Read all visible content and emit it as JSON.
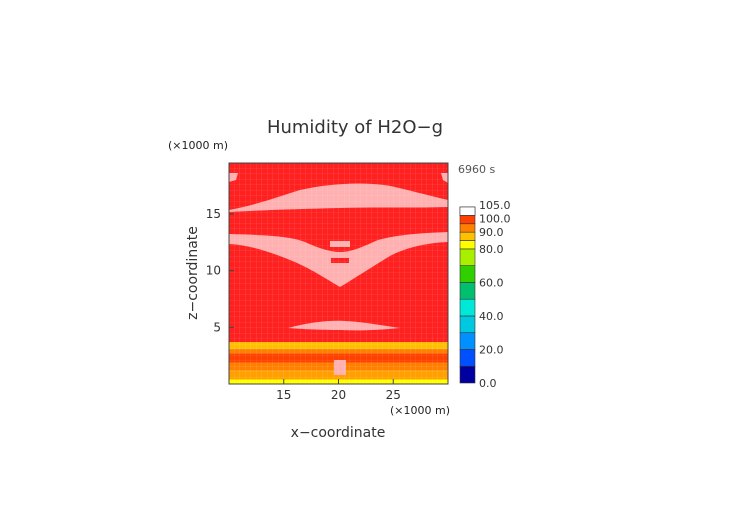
{
  "chart_data": {
    "type": "heatmap",
    "title": "Humidity of H2O−g",
    "time_label": "6960 s",
    "xlabel": "x−coordinate",
    "ylabel": "z−coordinate",
    "x_unit": "(×1000 m)",
    "z_unit": "(×1000 m)",
    "xlim": [
      10,
      30
    ],
    "ylim": [
      0,
      19.5
    ],
    "x_ticks": [
      15,
      20,
      25
    ],
    "y_ticks": [
      5,
      10,
      15
    ],
    "colorbar": {
      "levels": [
        {
          "value": 0.0,
          "color": "#0000a0"
        },
        {
          "value": 10.0,
          "color": "#0050ff"
        },
        {
          "value": 20.0,
          "color": "#0090ff"
        },
        {
          "value": 30.0,
          "color": "#00c8e0"
        },
        {
          "value": 40.0,
          "color": "#00e8d8"
        },
        {
          "value": 50.0,
          "color": "#00c070"
        },
        {
          "value": 60.0,
          "color": "#30d000"
        },
        {
          "value": 70.0,
          "color": "#a8f000"
        },
        {
          "value": 80.0,
          "color": "#ffff00"
        },
        {
          "value": 85.0,
          "color": "#ffc000"
        },
        {
          "value": 90.0,
          "color": "#ff8000"
        },
        {
          "value": 95.0,
          "color": "#ff4000"
        },
        {
          "value": 100.0,
          "color": "#ff0000"
        },
        {
          "value": 105.0,
          "color": "#ffffff"
        }
      ],
      "tick_labels": [
        "0.0",
        "20.0",
        "40.0",
        "60.0",
        "80.0",
        "90.0",
        "100.0",
        "105.0"
      ]
    },
    "bands": [
      {
        "z_range": [
          0.0,
          0.4
        ],
        "value": 80,
        "color": "#ffff00"
      },
      {
        "z_range": [
          0.4,
          1.2
        ],
        "value": 88,
        "color": "#ffa000"
      },
      {
        "z_range": [
          1.2,
          1.9
        ],
        "value": 92,
        "color": "#ff8000"
      },
      {
        "z_range": [
          1.9,
          2.7
        ],
        "value": 96,
        "color": "#ff4000"
      },
      {
        "z_range": [
          2.7,
          3.1
        ],
        "value": 90,
        "color": "#ff8000"
      },
      {
        "z_range": [
          3.1,
          3.7
        ],
        "value": 85,
        "color": "#ffc000"
      },
      {
        "z_range": [
          3.7,
          19.5
        ],
        "value": 99,
        "color": "#ff2020"
      }
    ],
    "supersaturated_regions": [
      {
        "name": "upper-layer",
        "value": 101,
        "color": "#ffb0b0"
      },
      {
        "name": "middle-layer",
        "value": 101,
        "color": "#ffb0b0"
      },
      {
        "name": "lower-lens",
        "value": 101,
        "color": "#ffb0b0"
      },
      {
        "name": "surface-core",
        "value": 101,
        "color": "#ffb0b0"
      }
    ]
  }
}
